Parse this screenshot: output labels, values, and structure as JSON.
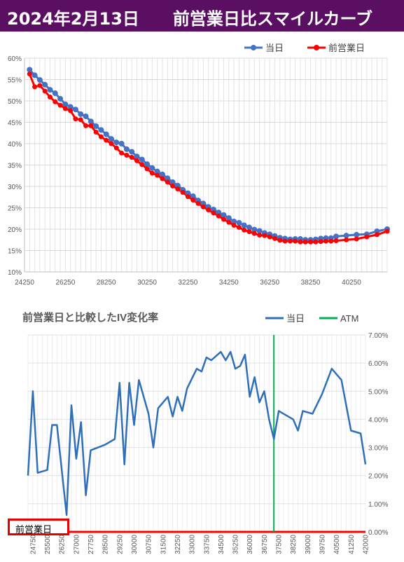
{
  "title": "2024年2月13日　　前営業日比スマイルカーブ",
  "chart_data": [
    {
      "type": "line",
      "title": "",
      "xlabel": "",
      "ylabel": "",
      "xlim": [
        24250,
        42000
      ],
      "ylim": [
        10,
        60
      ],
      "x_ticks": [
        "24250",
        "26250",
        "28250",
        "30250",
        "32250",
        "34250",
        "36250",
        "38250",
        "40250"
      ],
      "y_ticks": [
        "60%",
        "55%",
        "50%",
        "45%",
        "40%",
        "35%",
        "30%",
        "25%",
        "20%",
        "15%",
        "10%"
      ],
      "grid": true,
      "legend_position": "top-right",
      "colors": {
        "today": "#4472c4",
        "prev": "#ff0000"
      },
      "series": [
        {
          "name": "当日",
          "x": [
            24500,
            24750,
            25000,
            25250,
            25500,
            25750,
            26000,
            26250,
            26500,
            26750,
            27000,
            27250,
            27500,
            27750,
            28000,
            28250,
            28500,
            28750,
            29000,
            29250,
            29500,
            29750,
            30000,
            30250,
            30500,
            30750,
            31000,
            31250,
            31500,
            31750,
            32000,
            32250,
            32500,
            32750,
            33000,
            33250,
            33500,
            33750,
            34000,
            34250,
            34500,
            34750,
            35000,
            35250,
            35500,
            35750,
            36000,
            36250,
            36500,
            36750,
            37000,
            37250,
            37500,
            37750,
            38000,
            38250,
            38500,
            38750,
            39000,
            39250,
            39500,
            40000,
            40500,
            41000,
            41500,
            42000
          ],
          "values": [
            57.3,
            56.0,
            54.9,
            53.8,
            52.6,
            51.8,
            50.5,
            49.2,
            48.6,
            48.0,
            46.9,
            46.4,
            45.2,
            44.1,
            43.2,
            42.2,
            41.1,
            40.3,
            40.0,
            38.7,
            38.1,
            37.0,
            36.3,
            35.2,
            34.3,
            33.5,
            32.8,
            31.9,
            31.0,
            30.2,
            29.2,
            28.4,
            27.7,
            26.7,
            26.0,
            25.2,
            24.6,
            23.9,
            23.3,
            22.6,
            21.8,
            21.5,
            20.9,
            20.4,
            19.9,
            19.6,
            19.1,
            18.8,
            18.4,
            18.0,
            17.8,
            17.6,
            17.7,
            17.7,
            17.5,
            17.5,
            17.6,
            17.8,
            17.9,
            17.9,
            18.3,
            18.5,
            18.7,
            18.8,
            19.5,
            20.0
          ]
        },
        {
          "name": "前営業日",
          "x": [
            24500,
            24750,
            25000,
            25250,
            25500,
            25750,
            26000,
            26250,
            26500,
            26750,
            27000,
            27250,
            27500,
            27750,
            28000,
            28250,
            28500,
            28750,
            29000,
            29250,
            29500,
            29750,
            30000,
            30250,
            30500,
            30750,
            31000,
            31250,
            31500,
            31750,
            32000,
            32250,
            32500,
            32750,
            33000,
            33250,
            33500,
            33750,
            34000,
            34250,
            34500,
            34750,
            35000,
            35250,
            35500,
            35750,
            36000,
            36250,
            36500,
            36750,
            37000,
            37250,
            37500,
            37750,
            38000,
            38250,
            38500,
            38750,
            39000,
            39250,
            39500,
            40000,
            40500,
            41000,
            41500,
            42000
          ],
          "values": [
            56.3,
            53.3,
            53.6,
            52.3,
            50.9,
            49.8,
            49.0,
            48.2,
            47.7,
            45.8,
            45.6,
            44.2,
            44.2,
            42.7,
            41.6,
            40.8,
            40.0,
            39.0,
            37.8,
            37.3,
            36.8,
            36.0,
            35.1,
            34.1,
            33.1,
            32.6,
            31.8,
            31.0,
            30.1,
            29.4,
            28.6,
            27.6,
            26.8,
            26.0,
            25.2,
            24.5,
            23.8,
            23.1,
            22.3,
            21.6,
            20.9,
            20.4,
            19.8,
            19.4,
            19.0,
            18.6,
            18.5,
            18.2,
            17.8,
            17.4,
            17.2,
            17.2,
            17.2,
            17.0,
            17.0,
            17.0,
            17.0,
            17.1,
            17.2,
            17.2,
            17.3,
            17.5,
            17.7,
            18.2,
            18.7,
            19.5
          ]
        }
      ]
    },
    {
      "type": "line",
      "title": "前営業日と比較したIV変化率",
      "xlabel": "",
      "ylabel": "",
      "ylim": [
        0,
        7
      ],
      "y_ticks_right": [
        "7.00%",
        "6.00%",
        "5.00%",
        "4.00%",
        "3.00%",
        "2.00%",
        "1.00%",
        "0.00%"
      ],
      "x_categories": [
        "24500",
        "24750",
        "25000",
        "25250",
        "25500",
        "25750",
        "26000",
        "26250",
        "26500",
        "26750",
        "27000",
        "27250",
        "27500",
        "27750",
        "28000",
        "28250",
        "28500",
        "28750",
        "29000",
        "29250",
        "29500",
        "29750",
        "30000",
        "30250",
        "30500",
        "30750",
        "31000",
        "31250",
        "31500",
        "31750",
        "32000",
        "32250",
        "32500",
        "32750",
        "33000",
        "33250",
        "33500",
        "33750",
        "34000",
        "34250",
        "34500",
        "34750",
        "35000",
        "35250",
        "35500",
        "35750",
        "36000",
        "36250",
        "36500",
        "36750",
        "37000",
        "37250",
        "37500",
        "37750",
        "38000",
        "38250",
        "38500",
        "38750",
        "39000",
        "39250",
        "39500",
        "39750",
        "40000",
        "40250",
        "40500",
        "40750",
        "41000",
        "41250",
        "41500",
        "41750",
        "42000"
      ],
      "x_tick_labels": [
        "24750",
        "25500",
        "26250",
        "27000",
        "27750",
        "28500",
        "29250",
        "30000",
        "30750",
        "31500",
        "32250",
        "33000",
        "33750",
        "34500",
        "35250",
        "36000",
        "36750",
        "37500",
        "38250",
        "39000",
        "39750",
        "40500",
        "41250",
        "42000"
      ],
      "grid": true,
      "legend_position": "top-right",
      "colors": {
        "today": "#2f6fba",
        "atm": "#00b050",
        "prev": "#ff0000"
      },
      "atm_x": "37250",
      "series": [
        {
          "name": "当日",
          "points": [
            [
              "24500",
              2.0
            ],
            [
              "24750",
              5.0
            ],
            [
              "25000",
              2.1
            ],
            [
              "25500",
              2.2
            ],
            [
              "25750",
              3.8
            ],
            [
              "26000",
              3.8
            ],
            [
              "26500",
              0.6
            ],
            [
              "26750",
              4.5
            ],
            [
              "27000",
              2.6
            ],
            [
              "27250",
              3.9
            ],
            [
              "27500",
              1.3
            ],
            [
              "27750",
              2.9
            ],
            [
              "28500",
              3.1
            ],
            [
              "29000",
              3.3
            ],
            [
              "29250",
              5.3
            ],
            [
              "29500",
              2.4
            ],
            [
              "29750",
              5.3
            ],
            [
              "30000",
              3.8
            ],
            [
              "30250",
              5.4
            ],
            [
              "30750",
              4.2
            ],
            [
              "31000",
              3.0
            ],
            [
              "31250",
              4.4
            ],
            [
              "31750",
              4.8
            ],
            [
              "32000",
              4.1
            ],
            [
              "32250",
              4.8
            ],
            [
              "32500",
              4.3
            ],
            [
              "32750",
              5.1
            ],
            [
              "33250",
              5.8
            ],
            [
              "33500",
              5.7
            ],
            [
              "33750",
              6.2
            ],
            [
              "34000",
              6.1
            ],
            [
              "34500",
              6.4
            ],
            [
              "34750",
              6.1
            ],
            [
              "35000",
              6.4
            ],
            [
              "35250",
              5.8
            ],
            [
              "35500",
              5.9
            ],
            [
              "35750",
              6.3
            ],
            [
              "36000",
              4.8
            ],
            [
              "36250",
              5.5
            ],
            [
              "36500",
              4.6
            ],
            [
              "36750",
              5.0
            ],
            [
              "37000",
              4.0
            ],
            [
              "37250",
              3.3
            ],
            [
              "37500",
              4.3
            ],
            [
              "37750",
              4.2
            ],
            [
              "38250",
              4.0
            ],
            [
              "38500",
              3.6
            ],
            [
              "38750",
              4.3
            ],
            [
              "39250",
              4.2
            ],
            [
              "39750",
              4.9
            ],
            [
              "40250",
              5.8
            ],
            [
              "40750",
              5.4
            ],
            [
              "41250",
              3.6
            ],
            [
              "41750",
              3.5
            ],
            [
              "42000",
              2.4
            ]
          ]
        },
        {
          "name": "ATM"
        }
      ],
      "prev_label": "前営業日"
    }
  ]
}
